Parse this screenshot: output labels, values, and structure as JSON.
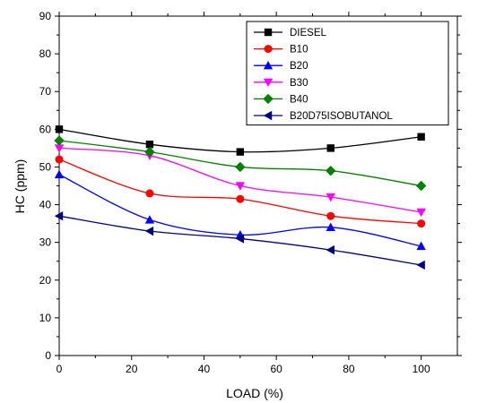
{
  "chart_data": {
    "type": "line",
    "title": "",
    "xlabel": "LOAD (%)",
    "ylabel": "HC (ppm)",
    "xlim": [
      0,
      110
    ],
    "ylim": [
      0,
      90
    ],
    "xticks": [
      0,
      20,
      40,
      60,
      80,
      100
    ],
    "yticks": [
      0,
      10,
      20,
      30,
      40,
      50,
      60,
      70,
      80,
      90
    ],
    "x": [
      0,
      25,
      50,
      75,
      100
    ],
    "grid": false,
    "legend_position": "top-right",
    "series": [
      {
        "name": "DIESEL",
        "marker": "square",
        "color": "#000000",
        "values": [
          60,
          56,
          54,
          55,
          58
        ]
      },
      {
        "name": "B10",
        "marker": "circle",
        "color": "#ff0000",
        "values": [
          52,
          43,
          41.5,
          37,
          35
        ]
      },
      {
        "name": "B20",
        "marker": "triangle-up",
        "color": "#0000ff",
        "values": [
          48,
          36,
          32,
          34,
          29
        ]
      },
      {
        "name": "B30",
        "marker": "triangle-down",
        "color": "#ff00ff",
        "values": [
          55,
          53,
          45,
          42,
          38
        ]
      },
      {
        "name": "B40",
        "marker": "diamond",
        "color": "#008000",
        "values": [
          57,
          54,
          50,
          49,
          45
        ]
      },
      {
        "name": "B20D75ISOBUTANOL",
        "marker": "triangle-left",
        "color": "#000080",
        "values": [
          37,
          33,
          31,
          28,
          24
        ]
      }
    ]
  }
}
